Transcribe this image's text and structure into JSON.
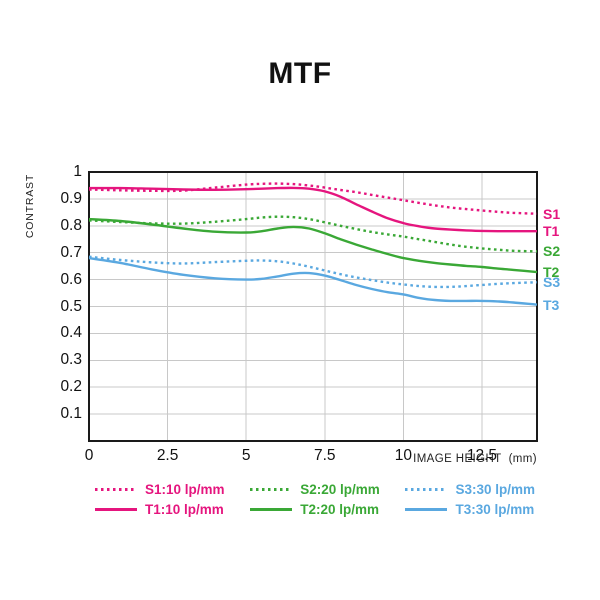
{
  "title": "MTF",
  "chart_data": {
    "type": "line",
    "title": "MTF",
    "xlabel": "IMAGE HEIGHT  (mm)",
    "ylabel": "CONTRAST",
    "xlim": [
      0,
      14.25
    ],
    "ylim": [
      0,
      1
    ],
    "xticks": [
      0,
      2.5,
      5,
      7.5,
      10,
      12.5
    ],
    "yticks": [
      1,
      0.9,
      0.8,
      0.7,
      0.6,
      0.5,
      0.4,
      0.3,
      0.2,
      0.1
    ],
    "grid": true,
    "grid_color": "#c8c8c8",
    "border_color": "#1a1a1a",
    "legend_position": "bottom",
    "x": [
      0,
      1,
      2,
      3,
      4,
      5,
      5.5,
      6,
      6.5,
      7,
      7.5,
      8,
      8.5,
      9,
      9.5,
      10,
      10.5,
      11,
      11.5,
      12,
      12.5,
      13,
      13.5,
      14.25
    ],
    "series": [
      {
        "name": "S1",
        "legend": "S1:10 lp/mm",
        "style": "dotted",
        "color": "#e5157e",
        "values": [
          0.935,
          0.932,
          0.93,
          0.931,
          0.942,
          0.953,
          0.956,
          0.957,
          0.955,
          0.95,
          0.942,
          0.933,
          0.925,
          0.915,
          0.905,
          0.895,
          0.885,
          0.876,
          0.868,
          0.862,
          0.857,
          0.852,
          0.848,
          0.845
        ]
      },
      {
        "name": "T1",
        "legend": "T1:10 lp/mm",
        "style": "solid",
        "color": "#e5157e",
        "values": [
          0.94,
          0.94,
          0.938,
          0.935,
          0.934,
          0.936,
          0.938,
          0.94,
          0.941,
          0.938,
          0.928,
          0.908,
          0.88,
          0.853,
          0.828,
          0.81,
          0.798,
          0.79,
          0.786,
          0.783,
          0.781,
          0.78,
          0.78,
          0.78
        ]
      },
      {
        "name": "S2",
        "legend": "S2:20 lp/mm",
        "style": "dotted",
        "color": "#3aa836",
        "values": [
          0.82,
          0.814,
          0.809,
          0.808,
          0.815,
          0.825,
          0.831,
          0.834,
          0.832,
          0.825,
          0.813,
          0.8,
          0.788,
          0.777,
          0.768,
          0.76,
          0.75,
          0.74,
          0.73,
          0.722,
          0.716,
          0.711,
          0.707,
          0.705
        ]
      },
      {
        "name": "T2",
        "legend": "T2:20 lp/mm",
        "style": "solid",
        "color": "#3aa836",
        "values": [
          0.825,
          0.818,
          0.805,
          0.79,
          0.778,
          0.775,
          0.78,
          0.79,
          0.796,
          0.79,
          0.772,
          0.75,
          0.73,
          0.712,
          0.695,
          0.68,
          0.67,
          0.662,
          0.656,
          0.651,
          0.647,
          0.641,
          0.636,
          0.628
        ]
      },
      {
        "name": "S3",
        "legend": "S3:30 lp/mm",
        "style": "dotted",
        "color": "#5aa8e0",
        "values": [
          0.685,
          0.673,
          0.664,
          0.66,
          0.665,
          0.67,
          0.671,
          0.668,
          0.66,
          0.648,
          0.634,
          0.62,
          0.608,
          0.598,
          0.589,
          0.582,
          0.576,
          0.573,
          0.573,
          0.576,
          0.58,
          0.584,
          0.587,
          0.59
        ]
      },
      {
        "name": "T3",
        "legend": "T3:30 lp/mm",
        "style": "solid",
        "color": "#5aa8e0",
        "values": [
          0.68,
          0.662,
          0.638,
          0.618,
          0.605,
          0.6,
          0.603,
          0.612,
          0.622,
          0.624,
          0.615,
          0.598,
          0.58,
          0.565,
          0.553,
          0.545,
          0.532,
          0.524,
          0.521,
          0.521,
          0.521,
          0.519,
          0.515,
          0.507
        ]
      }
    ]
  }
}
